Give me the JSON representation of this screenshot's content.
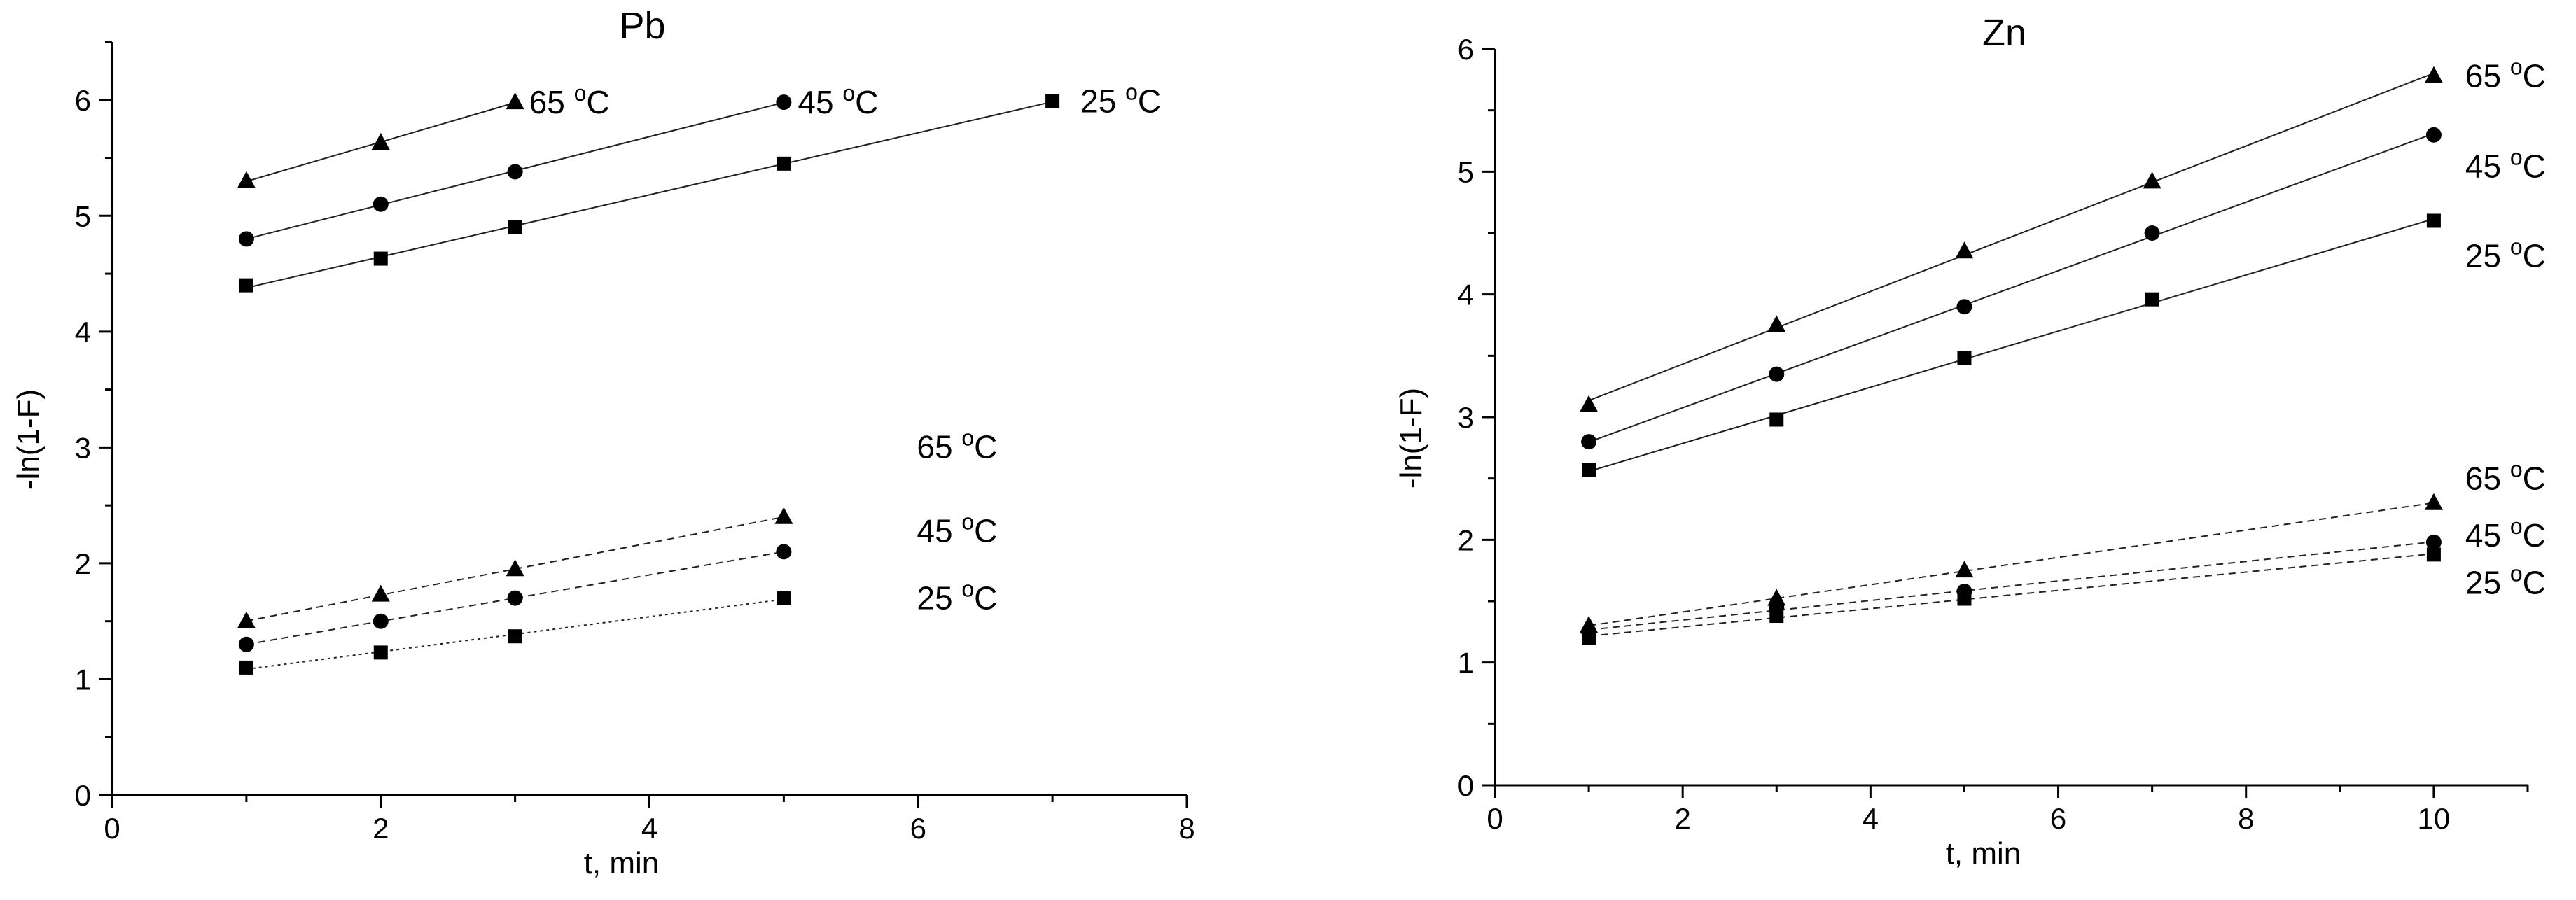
{
  "chart_data": [
    {
      "type": "scatter",
      "title": "Pb",
      "xlabel": "t, min",
      "ylabel": "-ln(1-F)",
      "xlim": [
        0,
        8
      ],
      "ylim": [
        0,
        6.5
      ],
      "xticks": [
        0,
        2,
        4,
        6,
        8
      ],
      "yticks": [
        0,
        1,
        2,
        3,
        4,
        5,
        6
      ],
      "grid": false,
      "series": [
        {
          "name": "65 oC",
          "group": "upper",
          "marker": "triangle",
          "line": "solid",
          "x": [
            1,
            2,
            3
          ],
          "y": [
            5.3,
            5.63,
            5.98
          ]
        },
        {
          "name": "45 oC",
          "group": "upper",
          "marker": "circle",
          "line": "solid",
          "x": [
            1,
            2,
            3,
            5
          ],
          "y": [
            4.8,
            5.1,
            5.38,
            5.98
          ]
        },
        {
          "name": "25 oC",
          "group": "upper",
          "marker": "square",
          "line": "solid",
          "x": [
            1,
            2,
            3,
            5,
            7
          ],
          "y": [
            4.4,
            4.63,
            4.9,
            5.45,
            5.99
          ]
        },
        {
          "name": "65 oC",
          "group": "lower",
          "marker": "triangle",
          "line": "dashed",
          "x": [
            1,
            2,
            3,
            5
          ],
          "y": [
            1.5,
            1.73,
            1.95,
            2.4
          ]
        },
        {
          "name": "45 oC",
          "group": "lower",
          "marker": "circle",
          "line": "dashed",
          "x": [
            1,
            2,
            3,
            5
          ],
          "y": [
            1.3,
            1.5,
            1.7,
            2.1
          ]
        },
        {
          "name": "25 oC",
          "group": "lower",
          "marker": "square",
          "line": "dotted",
          "x": [
            1,
            2,
            3,
            5
          ],
          "y": [
            1.1,
            1.23,
            1.37,
            1.7
          ]
        }
      ]
    },
    {
      "type": "scatter",
      "title": "Zn",
      "xlabel": "t, min",
      "ylabel": "-ln(1-F)",
      "xlim": [
        0,
        11
      ],
      "ylim": [
        0,
        6
      ],
      "xticks": [
        0,
        2,
        4,
        6,
        8,
        10
      ],
      "yticks": [
        0,
        1,
        2,
        3,
        4,
        5,
        6
      ],
      "grid": false,
      "series": [
        {
          "name": "65 oC",
          "group": "upper",
          "marker": "triangle",
          "line": "solid",
          "x": [
            1,
            3,
            5,
            7,
            10
          ],
          "y": [
            3.1,
            3.75,
            4.35,
            4.92,
            5.78
          ]
        },
        {
          "name": "45 oC",
          "group": "upper",
          "marker": "circle",
          "line": "solid",
          "x": [
            1,
            3,
            5,
            7,
            10
          ],
          "y": [
            2.8,
            3.35,
            3.9,
            4.5,
            5.3
          ]
        },
        {
          "name": "25 oC",
          "group": "upper",
          "marker": "square",
          "line": "solid",
          "x": [
            1,
            3,
            5,
            7,
            10
          ],
          "y": [
            2.57,
            2.98,
            3.48,
            3.96,
            4.6
          ]
        },
        {
          "name": "65 oC",
          "group": "lower",
          "marker": "triangle",
          "line": "dashed",
          "x": [
            1,
            3,
            5,
            10
          ],
          "y": [
            1.3,
            1.52,
            1.75,
            2.3
          ]
        },
        {
          "name": "45 oC",
          "group": "lower",
          "marker": "circle",
          "line": "dashed",
          "x": [
            1,
            3,
            5,
            10
          ],
          "y": [
            1.25,
            1.45,
            1.58,
            1.98
          ]
        },
        {
          "name": "25 oC",
          "group": "lower",
          "marker": "square",
          "line": "dashed",
          "x": [
            1,
            3,
            5,
            10
          ],
          "y": [
            1.2,
            1.38,
            1.52,
            1.88
          ]
        }
      ]
    }
  ]
}
